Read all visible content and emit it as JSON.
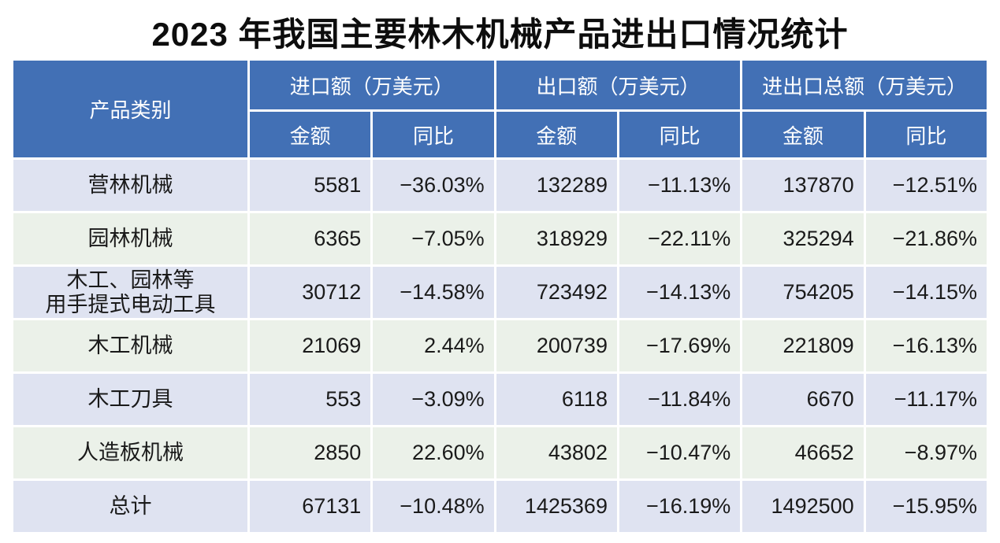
{
  "title": "2023 年我国主要林木机械产品进出口情况统计",
  "colors": {
    "header_bg": "#4270B5",
    "header_text": "#FFFFFF",
    "row_odd_bg": "#DFE3F1",
    "row_even_bg": "#EBF1E9",
    "body_text": "#1A1A1A"
  },
  "table": {
    "header": {
      "category": "产品类别",
      "groups": [
        {
          "label": "进口额（万美元）",
          "sub": [
            "金额",
            "同比"
          ]
        },
        {
          "label": "出口额（万美元）",
          "sub": [
            "金额",
            "同比"
          ]
        },
        {
          "label": "进出口总额（万美元）",
          "sub": [
            "金额",
            "同比"
          ]
        }
      ]
    },
    "rows": [
      {
        "category": "营林机械",
        "values": [
          "5581",
          "−36.03%",
          "132289",
          "−11.13%",
          "137870",
          "−12.51%"
        ]
      },
      {
        "category": "园林机械",
        "values": [
          "6365",
          "−7.05%",
          "318929",
          "−22.11%",
          "325294",
          "−21.86%"
        ]
      },
      {
        "category": "木工、园林等\n用手提式电动工具",
        "values": [
          "30712",
          "−14.58%",
          "723492",
          "−14.13%",
          "754205",
          "−14.15%"
        ]
      },
      {
        "category": "木工机械",
        "values": [
          "21069",
          "2.44%",
          "200739",
          "−17.69%",
          "221809",
          "−16.13%"
        ]
      },
      {
        "category": "木工刀具",
        "values": [
          "553",
          "−3.09%",
          "6118",
          "−11.84%",
          "6670",
          "−11.17%"
        ]
      },
      {
        "category": "人造板机械",
        "values": [
          "2850",
          "22.60%",
          "43802",
          "−10.47%",
          "46652",
          "−8.97%"
        ]
      },
      {
        "category": "总计",
        "values": [
          "67131",
          "−10.48%",
          "1425369",
          "−16.19%",
          "1492500",
          "−15.95%"
        ]
      }
    ]
  },
  "chart_data": {
    "type": "table",
    "title": "2023 年我国主要林木机械产品进出口情况统计",
    "unit": "万美元",
    "columns": [
      "产品类别",
      "进口额-金额",
      "进口额-同比",
      "出口额-金额",
      "出口额-同比",
      "进出口总额-金额",
      "进出口总额-同比"
    ],
    "rows": [
      [
        "营林机械",
        5581,
        "-36.03%",
        132289,
        "-11.13%",
        137870,
        "-12.51%"
      ],
      [
        "园林机械",
        6365,
        "-7.05%",
        318929,
        "-22.11%",
        325294,
        "-21.86%"
      ],
      [
        "木工、园林等用手提式电动工具",
        30712,
        "-14.58%",
        723492,
        "-14.13%",
        754205,
        "-14.15%"
      ],
      [
        "木工机械",
        21069,
        "2.44%",
        200739,
        "-17.69%",
        221809,
        "-16.13%"
      ],
      [
        "木工刀具",
        553,
        "-3.09%",
        6118,
        "-11.84%",
        6670,
        "-11.17%"
      ],
      [
        "人造板机械",
        2850,
        "22.60%",
        43802,
        "-10.47%",
        46652,
        "-8.97%"
      ],
      [
        "总计",
        67131,
        "-10.48%",
        1425369,
        "-16.19%",
        1492500,
        "-15.95%"
      ]
    ]
  }
}
